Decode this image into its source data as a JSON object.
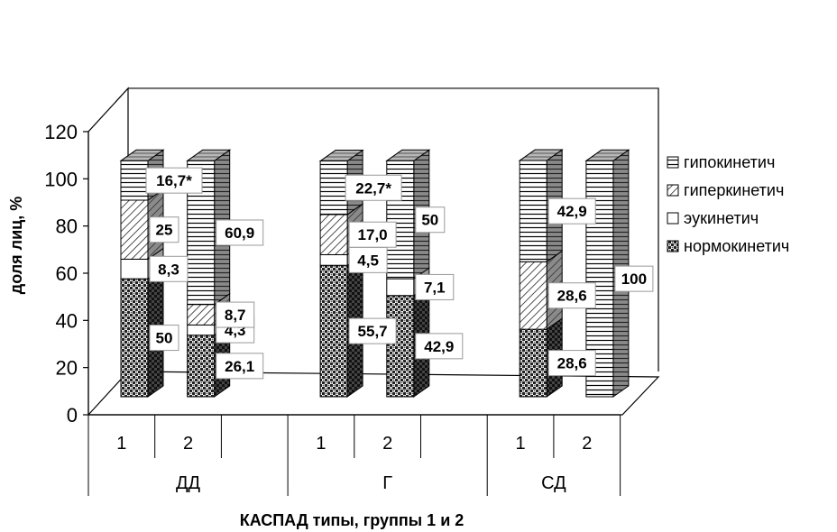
{
  "chart_data": {
    "type": "bar",
    "stacked": true,
    "three_d": true,
    "ylabel": "доля лиц, %",
    "xlabel": "КАСПАД типы, группы 1 и 2",
    "ylim": [
      0,
      120
    ],
    "yticks": [
      "0",
      "20",
      "40",
      "60",
      "80",
      "100",
      "120"
    ],
    "ytick_values": [
      0,
      20,
      40,
      60,
      80,
      100,
      120
    ],
    "groups": [
      {
        "name": "ДД",
        "categories": [
          "1",
          "2",
          ""
        ]
      },
      {
        "name": "Г",
        "categories": [
          "1",
          "2",
          ""
        ]
      },
      {
        "name": "СД",
        "categories": [
          "1",
          "2"
        ]
      }
    ],
    "bars": [
      {
        "group": "ДД",
        "category": "1",
        "values": [
          50,
          8.3,
          25,
          16.7
        ],
        "labels": [
          "50",
          "8,3",
          "25",
          "16,7*"
        ]
      },
      {
        "group": "ДД",
        "category": "2",
        "values": [
          26.1,
          4.3,
          8.7,
          60.9
        ],
        "labels": [
          "26,1",
          "4,3",
          "8,7",
          "60,9"
        ]
      },
      {
        "group": "Г",
        "category": "1",
        "values": [
          55.7,
          4.5,
          17.0,
          22.7
        ],
        "labels": [
          "55,7",
          "4,5",
          "17,0",
          "22,7*"
        ]
      },
      {
        "group": "Г",
        "category": "2",
        "values": [
          42.9,
          7.1,
          0,
          50
        ],
        "labels": [
          "42,9",
          "7,1",
          "",
          "50"
        ]
      },
      {
        "group": "СД",
        "category": "1",
        "values": [
          28.6,
          0,
          28.6,
          42.9
        ],
        "labels": [
          "28,6",
          "",
          "28,6",
          "42,9"
        ]
      },
      {
        "group": "СД",
        "category": "2",
        "values": [
          0,
          0,
          0,
          100
        ],
        "labels": [
          "",
          "",
          "",
          "100"
        ]
      }
    ],
    "series": [
      {
        "name": "нормокинетич",
        "pattern": "crosshatch-dark"
      },
      {
        "name": "эукинетич",
        "pattern": "white"
      },
      {
        "name": "гиперкинетич",
        "pattern": "diagonal"
      },
      {
        "name": "гипокинетич",
        "pattern": "horizontal"
      }
    ],
    "legend": {
      "placement": "right",
      "order": [
        "гипокинетич",
        "гиперкинетич",
        "эукинетич",
        "нормокинетич"
      ]
    },
    "grid": false
  }
}
